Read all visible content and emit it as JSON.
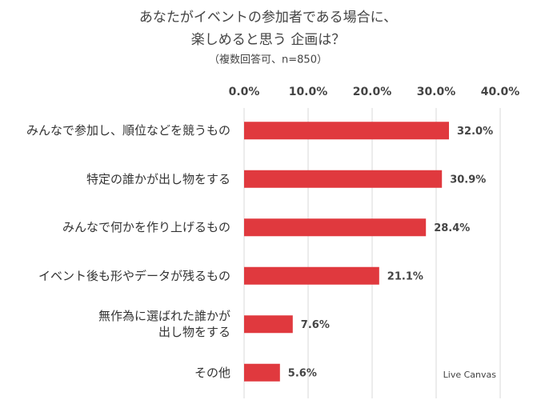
{
  "chart_data": {
    "type": "barh",
    "title": [
      "あなたがイベントの参加者である場合に、",
      "楽しめると思う 企画は？"
    ],
    "subtitle": "（複数回答可、n=850）",
    "categories": [
      "みんなで参加し、順位などを競うもの",
      "特定の誰かが出し物をする",
      "みんなで何かを作り上げるもの",
      "イベント後も形やデータが残るもの",
      "無作為に選ばれた誰かが\n出し物をする",
      "その他"
    ],
    "values": [
      32.0,
      30.9,
      28.4,
      21.1,
      7.6,
      5.6
    ],
    "value_labels": [
      "32.0%",
      "30.9%",
      "28.4%",
      "21.1%",
      "7.6%",
      "5.6%"
    ],
    "color": "#e0393e",
    "xlim": [
      0,
      40
    ],
    "xticks": [
      {
        "value": 0,
        "label": "0.0%"
      },
      {
        "value": 10,
        "label": "10.0%"
      },
      {
        "value": 20,
        "label": "20.0%"
      },
      {
        "value": 30,
        "label": "30.0%"
      },
      {
        "value": 40,
        "label": "40.0%"
      }
    ],
    "grid": true,
    "logo": "Live Canvas"
  }
}
